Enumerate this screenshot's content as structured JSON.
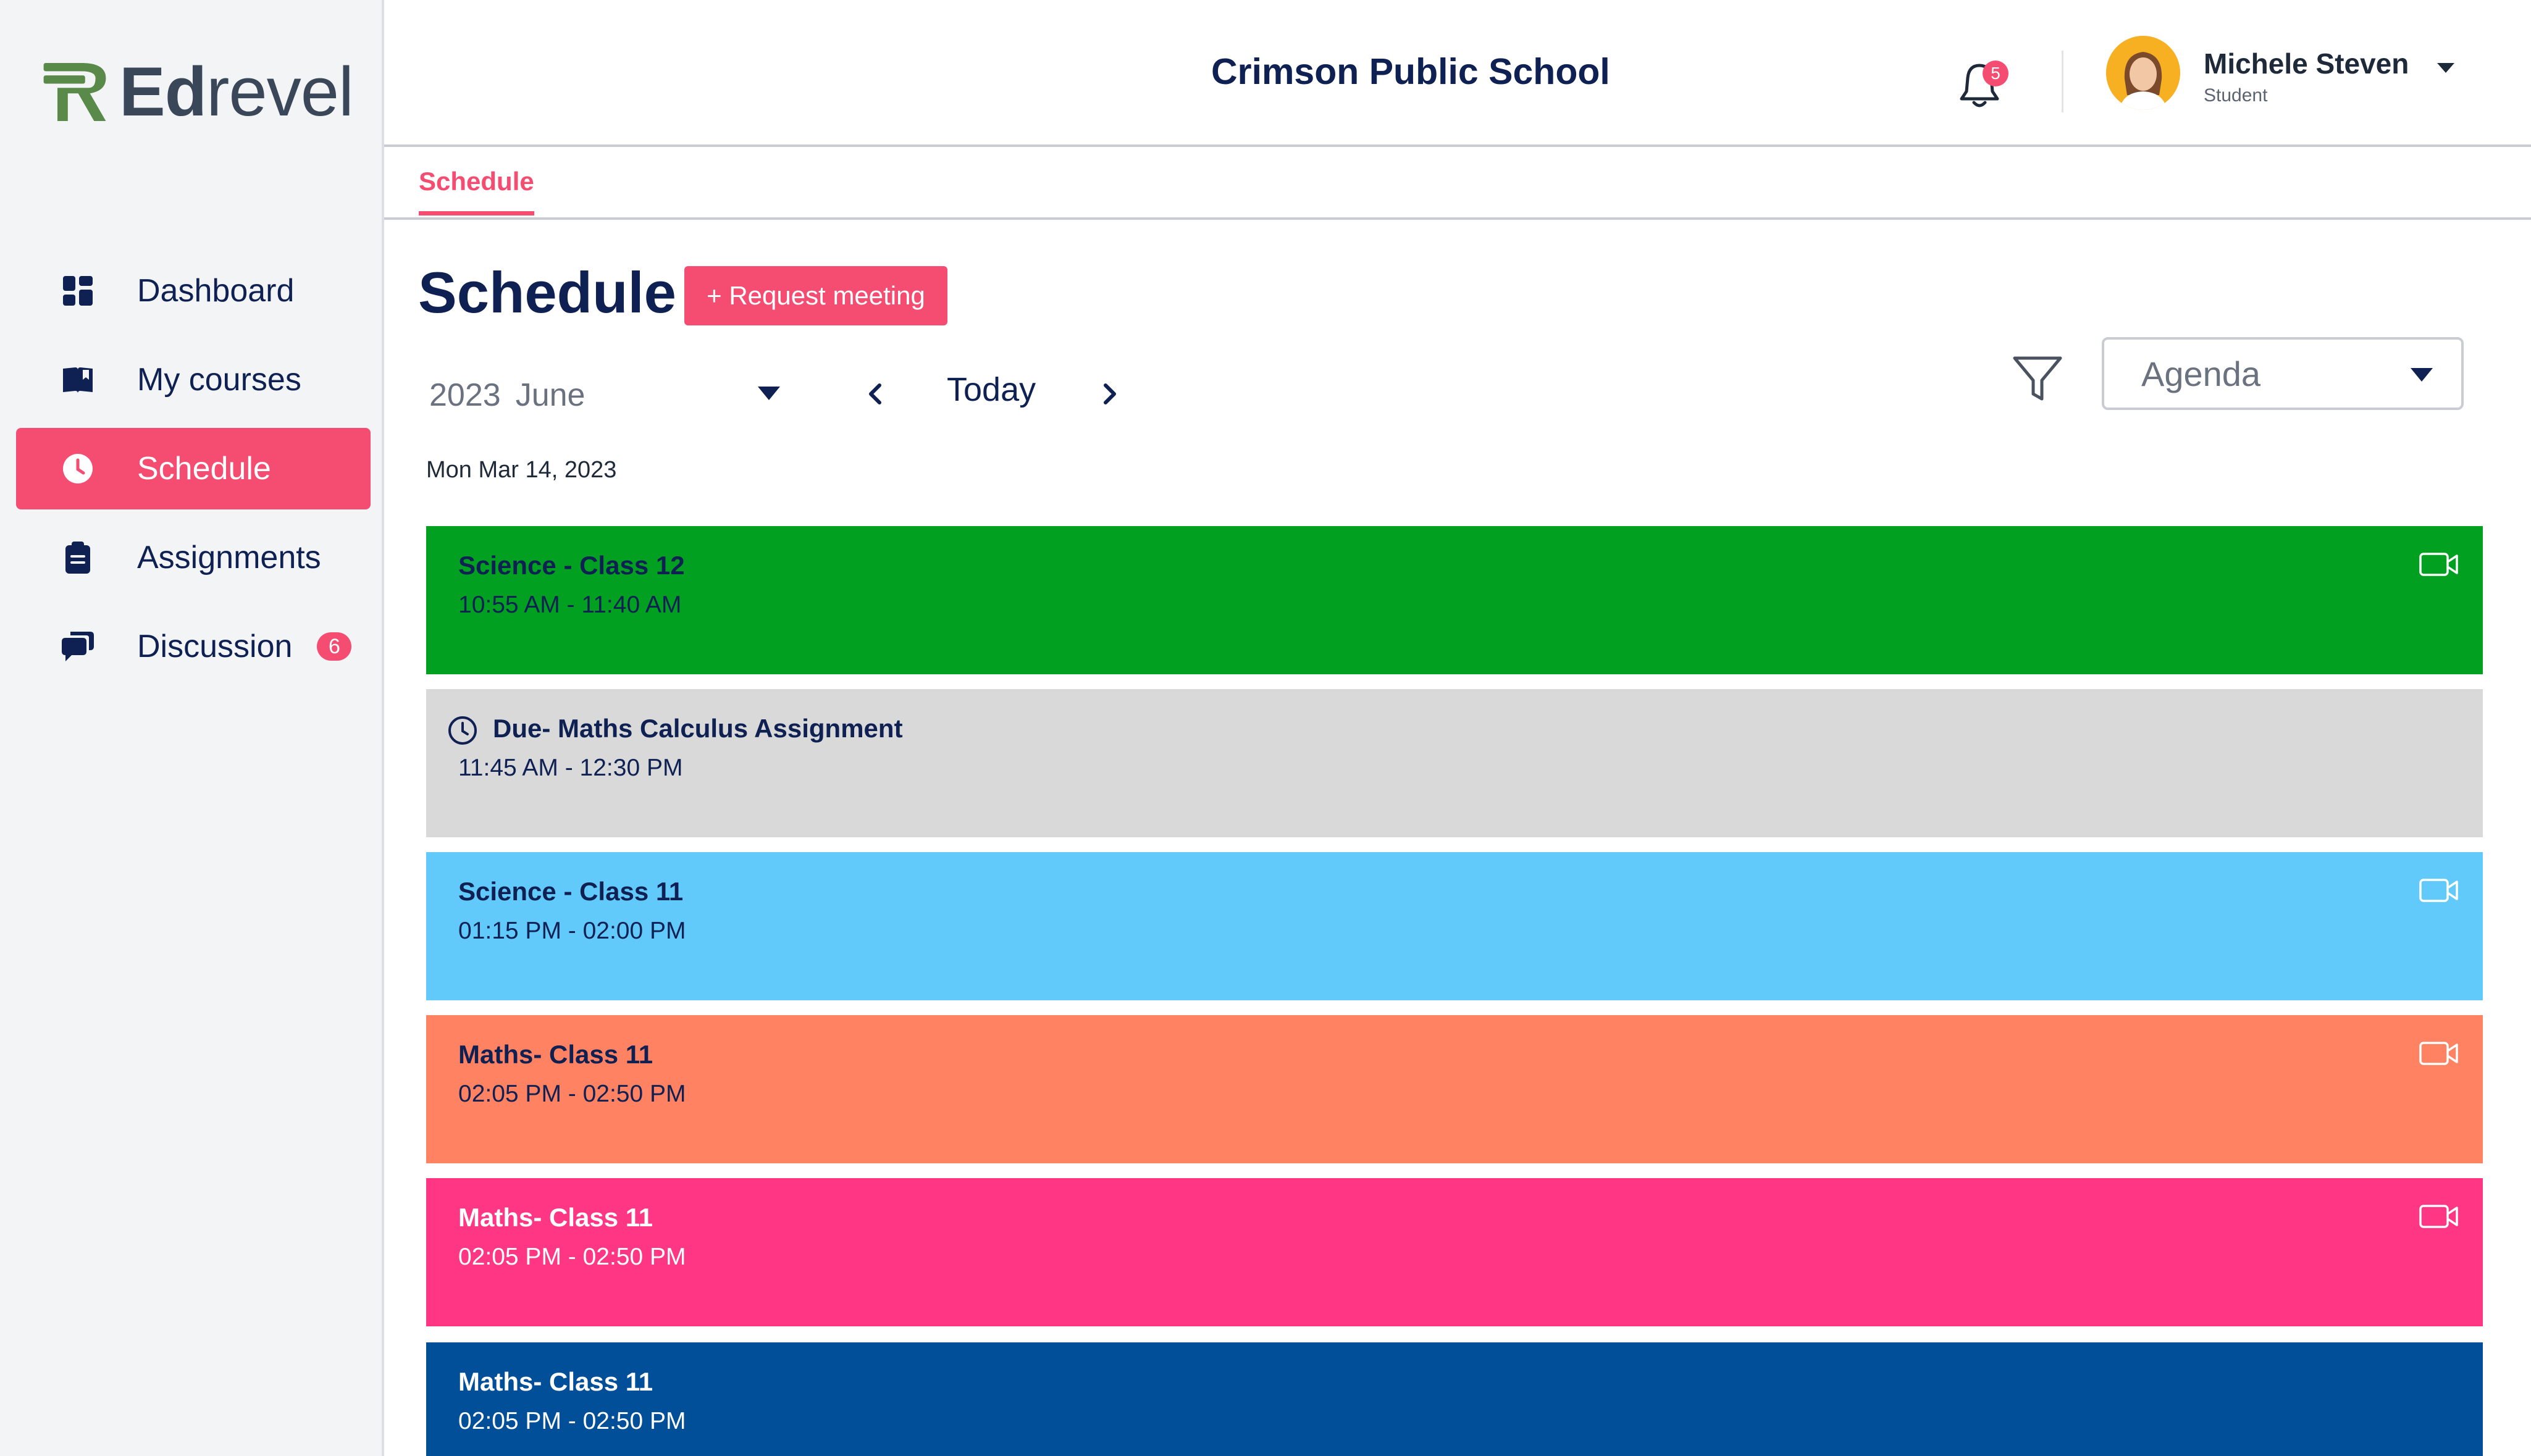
{
  "brand": {
    "name_bold": "Ed",
    "name_light": "revel",
    "accent_color": "#f54d72",
    "logo_green": "#5a8a4a"
  },
  "sidebar": {
    "items": [
      {
        "label": "Dashboard",
        "icon": "dashboard-icon",
        "active": false
      },
      {
        "label": "My courses",
        "icon": "book-icon",
        "active": false
      },
      {
        "label": "Schedule",
        "icon": "clock-icon",
        "active": true
      },
      {
        "label": "Assignments",
        "icon": "clipboard-icon",
        "active": false
      },
      {
        "label": "Discussion",
        "icon": "chat-icon",
        "active": false,
        "badge": "6"
      }
    ]
  },
  "header": {
    "school_name": "Crimson Public School",
    "notifications_count": "5",
    "user": {
      "name": "Michele Steven",
      "role": "Student"
    }
  },
  "tabs": [
    {
      "label": "Schedule",
      "active": true
    }
  ],
  "main": {
    "title": "Schedule",
    "request_button": "+ Request meeting",
    "month_picker": {
      "year": "2023",
      "month": "June"
    },
    "today_label": "Today",
    "view_select": "Agenda",
    "date_label": "Mon Mar 14, 2023",
    "events": [
      {
        "title": "Science - Class 12",
        "time": "10:55 AM - 11:40 AM",
        "color": "#02a021",
        "text_color": "#0f2052",
        "icon": "video-camera-icon",
        "icon_color": "#ffffff"
      },
      {
        "title": "Due- Maths Calculus Assignment",
        "time": "11:45 AM - 12:30 PM",
        "color": "#d9d9d9",
        "text_color": "#0f2052",
        "icon": "clock-icon",
        "icon_color": "#0f2052"
      },
      {
        "title": "Science - Class 11",
        "time": "01:15 PM - 02:00 PM",
        "color": "#62c9fb",
        "text_color": "#0f2052",
        "icon": "video-camera-icon",
        "icon_color": "#ffffff"
      },
      {
        "title": "Maths- Class 11",
        "time": "02:05 PM - 02:50 PM",
        "color": "#ff8262",
        "text_color": "#0f2052",
        "icon": "video-camera-icon",
        "icon_color": "#ffffff"
      },
      {
        "title": "Maths- Class 11",
        "time": "02:05 PM - 02:50 PM",
        "color": "#ff3684",
        "text_color": "#ffffff",
        "icon": "video-camera-icon",
        "icon_color": "#ffffff"
      },
      {
        "title": "Maths- Class 11",
        "time": "02:05 PM - 02:50 PM",
        "color": "#004f98",
        "text_color": "#ffffff",
        "icon": "video-camera-icon",
        "icon_color": "#ffffff"
      }
    ]
  }
}
